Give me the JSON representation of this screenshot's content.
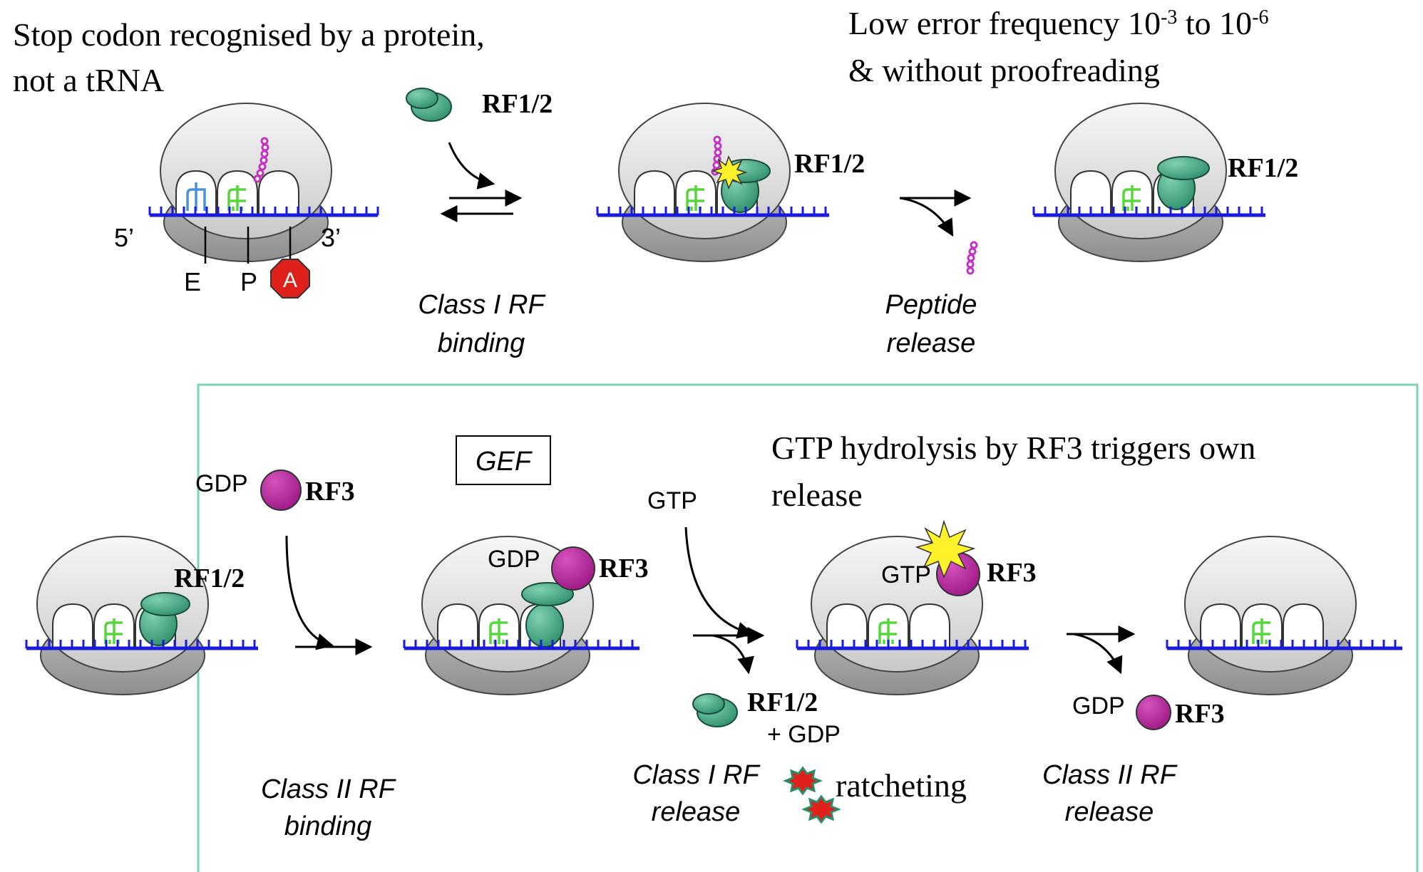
{
  "top": {
    "heading_left_line1": "Stop codon recognised by a protein,",
    "heading_left_line2": "not a tRNA",
    "heading_right_line1_prefix": "Low error frequency 10",
    "exp1": "-3",
    "heading_right_line1_mid": " to 10",
    "exp2": "-6",
    "heading_right_line2": "& without proofreading",
    "end5": "5’",
    "end3": "3’",
    "site_e": "E",
    "site_p": "P",
    "site_a": "A",
    "rf12_free": "RF1/2",
    "rf12_bound1": "RF1/2",
    "rf12_bound2": "RF1/2",
    "step1_line1": "Class I RF",
    "step1_line2": "binding",
    "step2_line1": "Peptide",
    "step2_line2": "release"
  },
  "bottom": {
    "rf12_label": "RF1/2",
    "gdp_in": "GDP",
    "rf3_in": "RF3",
    "gef": "GEF",
    "gdp_bound": "GDP",
    "rf3_bound": "RF3",
    "gtp_in": "GTP",
    "heading_line1": "GTP hydrolysis by RF3 triggers own",
    "heading_line2": "release",
    "gtp_bound": "GTP",
    "rf3_gtp": "RF3",
    "rf12_out": "RF1/2",
    "plus_gdp": "+ GDP",
    "gdp_out": "GDP",
    "rf3_out": "RF3",
    "ratcheting": "ratcheting",
    "step3_line1": "Class II RF",
    "step3_line2": "binding",
    "step4_line1": "Class I RF",
    "step4_line2": "release",
    "step5_line1": "Class II RF",
    "step5_line2": "release"
  },
  "colors": {
    "mrna": "#1a1adc",
    "rf12": "#3a9e7e",
    "rf3": "#b5229a",
    "trna_p": "#55d63a",
    "trna_e": "#4a90e2",
    "peptide": "#c233c2",
    "stop": "#e0201a",
    "star": "#fff22a",
    "box": "#7fd4b4"
  }
}
